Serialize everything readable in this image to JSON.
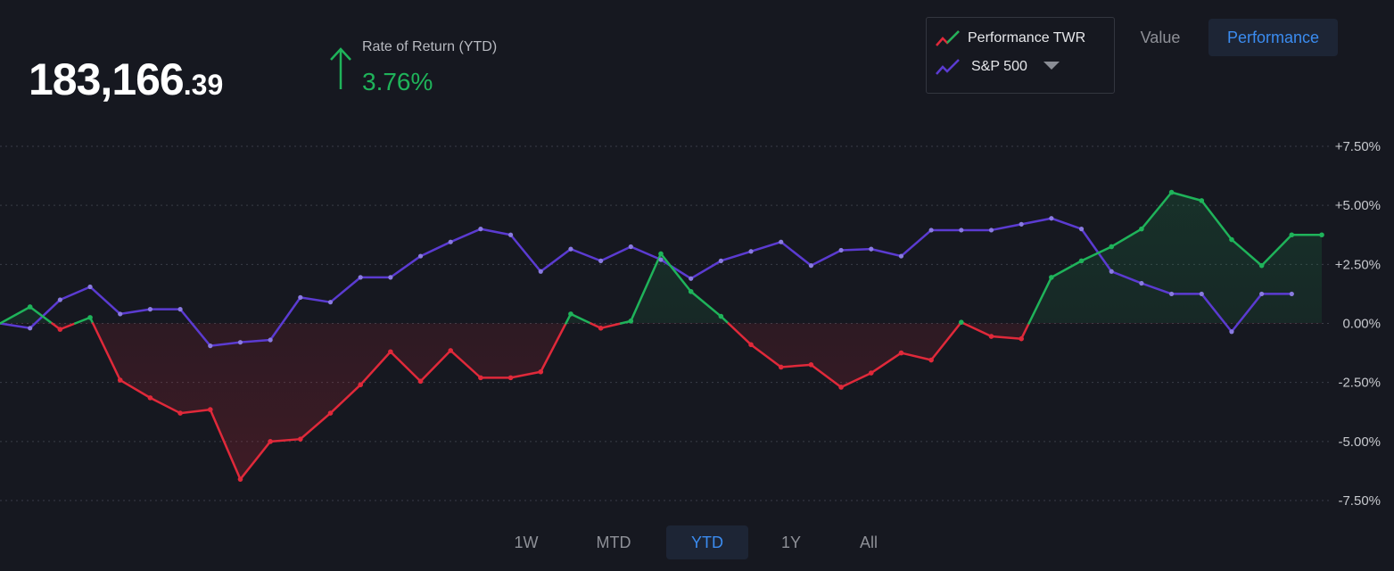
{
  "balance": {
    "whole": "183,166",
    "cents": ".39"
  },
  "rate_of_return": {
    "label": "Rate of Return (YTD)",
    "value": "3.76%",
    "direction": "up"
  },
  "legend": {
    "items": [
      {
        "label": "Performance TWR",
        "icon": "line-chart-icon"
      },
      {
        "label": "S&P 500",
        "icon": "line-chart-icon"
      }
    ]
  },
  "view_toggle": {
    "value_label": "Value",
    "performance_label": "Performance",
    "active": "Performance"
  },
  "time_ranges": {
    "items": [
      "1W",
      "MTD",
      "YTD",
      "1Y",
      "All"
    ],
    "active": "YTD"
  },
  "colors": {
    "positive": "#1fb35a",
    "negative": "#e0293a",
    "benchmark": "#5b3bd1",
    "accent": "#3b8cf0",
    "background": "#161820"
  },
  "chart_data": {
    "type": "line",
    "y_ticks": [
      "+7.50%",
      "+5.00%",
      "+2.50%",
      "0.00%",
      "-2.50%",
      "-5.00%",
      "-7.50%"
    ],
    "ylim": [
      -7.5,
      7.5
    ],
    "grid": true,
    "series": [
      {
        "name": "Performance TWR",
        "values": [
          0,
          0.7,
          -0.25,
          0.25,
          -2.4,
          -3.15,
          -3.8,
          -3.65,
          -6.6,
          -5.0,
          -4.9,
          -3.8,
          -2.6,
          -1.2,
          -2.45,
          -1.15,
          -2.3,
          -2.3,
          -2.05,
          0.4,
          -0.2,
          0.1,
          2.95,
          1.35,
          0.3,
          -0.9,
          -1.85,
          -1.75,
          -2.7,
          -2.1,
          -1.25,
          -1.55,
          0.05,
          -0.55,
          -0.65,
          1.95,
          2.65,
          3.25,
          4.0,
          5.55,
          5.2,
          3.55,
          2.45,
          3.75,
          3.75
        ]
      },
      {
        "name": "S&P 500",
        "values": [
          0,
          -0.2,
          1.0,
          1.55,
          0.4,
          0.6,
          0.6,
          -0.95,
          -0.8,
          -0.7,
          1.1,
          0.9,
          1.95,
          1.95,
          2.85,
          3.45,
          4.0,
          3.75,
          2.2,
          3.15,
          2.65,
          3.25,
          2.7,
          1.9,
          2.65,
          3.05,
          3.45,
          2.45,
          3.1,
          3.15,
          2.85,
          3.95,
          3.95,
          3.95,
          4.2,
          4.45,
          4.0,
          2.2,
          1.7,
          1.25,
          1.25,
          -0.35,
          1.25,
          1.25
        ]
      }
    ]
  }
}
